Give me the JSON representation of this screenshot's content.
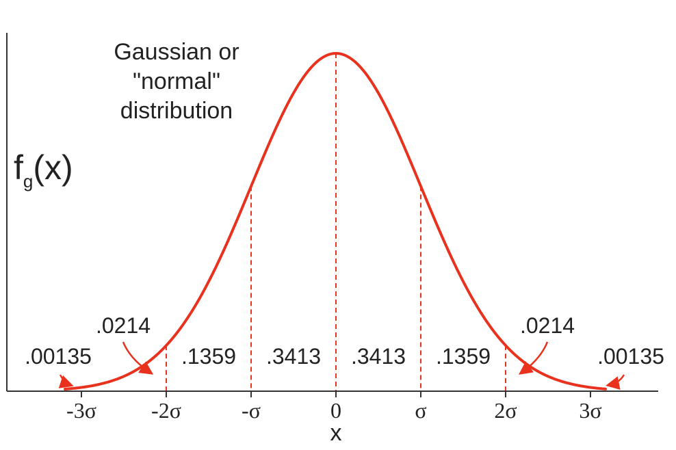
{
  "title_lines": [
    "Gaussian or",
    "\"normal\"",
    "distribution"
  ],
  "y_label": {
    "main": "f",
    "sub": "g",
    "paren": "(x)"
  },
  "x_label": "x",
  "ticks": [
    {
      "sigma": -3,
      "label": "-3σ"
    },
    {
      "sigma": -2,
      "label": "-2σ"
    },
    {
      "sigma": -1,
      "label": "-σ"
    },
    {
      "sigma": 0,
      "label": "0"
    },
    {
      "sigma": 1,
      "label": "σ"
    },
    {
      "sigma": 2,
      "label": "2σ"
    },
    {
      "sigma": 3,
      "label": "3σ"
    }
  ],
  "region_probabilities": [
    {
      "from": -3,
      "to": -2,
      "label": ".0214"
    },
    {
      "from": -2,
      "to": -1,
      "label": ".1359"
    },
    {
      "from": -1,
      "to": 0,
      "label": ".3413"
    },
    {
      "from": 0,
      "to": 1,
      "label": ".3413"
    },
    {
      "from": 1,
      "to": 2,
      "label": ".1359"
    },
    {
      "from": 2,
      "to": 3,
      "label": ".0214"
    }
  ],
  "tail_probabilities": [
    {
      "side": "left",
      "label": ".00135"
    },
    {
      "side": "right",
      "label": ".00135"
    }
  ],
  "colors": {
    "curve": "#e8321e",
    "axis": "#333333",
    "text": "#222222"
  }
}
